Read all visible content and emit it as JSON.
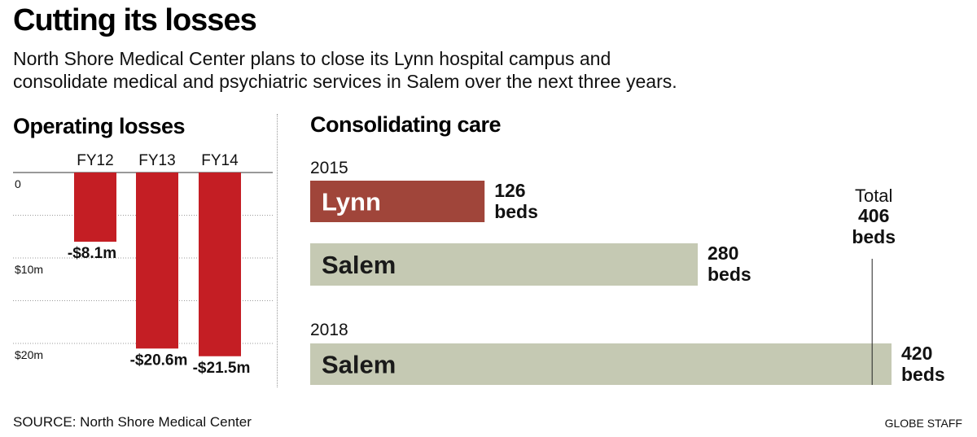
{
  "title": "Cutting its losses",
  "subtitle_lines": [
    "North Shore Medical Center plans to close its Lynn hospital campus and",
    "consolidate medical and psychiatric services in Salem over the next three years."
  ],
  "source": "SOURCE: North Shore Medical Center",
  "credit": "GLOBE STAFF",
  "colors": {
    "loss_bar": "#c41e24",
    "lynn_bar": "#a0453a",
    "salem_bar": "#c5c9b3"
  },
  "chart_data": [
    {
      "type": "bar",
      "title": "Operating losses",
      "categories": [
        "FY12",
        "FY13",
        "FY14"
      ],
      "values": [
        -8.1,
        -20.6,
        -21.5
      ],
      "value_labels": [
        "-$8.1m",
        "-$20.6m",
        "-$21.5m"
      ],
      "ytick_labels": [
        "0",
        "$10m",
        "$20m"
      ],
      "ytick_values": [
        0,
        -10,
        -20
      ],
      "ylim": [
        -23,
        0
      ],
      "grid": true
    },
    {
      "type": "bar",
      "title": "Consolidating care",
      "orientation": "horizontal",
      "groups": [
        {
          "year": "2015",
          "bars": [
            {
              "name": "Lynn",
              "value": 126,
              "value_label": "126",
              "unit": "beds"
            },
            {
              "name": "Salem",
              "value": 280,
              "value_label": "280",
              "unit": "beds"
            }
          ]
        },
        {
          "year": "2018",
          "bars": [
            {
              "name": "Salem",
              "value": 420,
              "value_label": "420",
              "unit": "beds"
            }
          ]
        }
      ],
      "annotation": {
        "label": "Total",
        "value": 406,
        "value_label": "406",
        "unit": "beds"
      },
      "xlim": [
        0,
        420
      ]
    }
  ]
}
